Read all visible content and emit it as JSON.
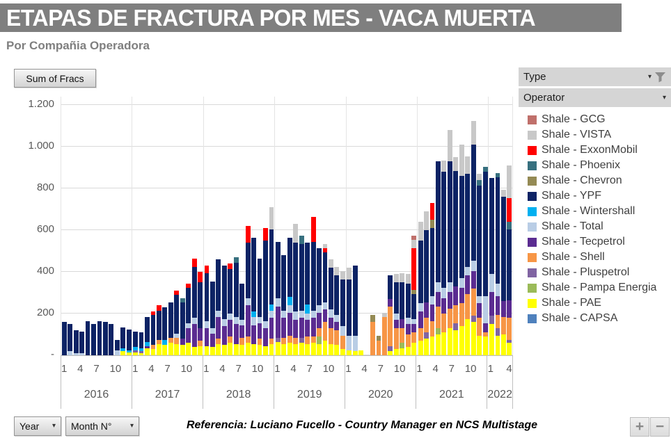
{
  "title": "ETAPAS DE FRACTURA POR MES -  VACA MUERTA",
  "subtitle": "Por Compañia Operadora",
  "toolbar": {
    "sum_of_fracs": "Sum of Fracs",
    "year_label": "Year",
    "month_label": "Month N°"
  },
  "filters": {
    "type_label": "Type",
    "operator_label": "Operator"
  },
  "footer": {
    "reference": "Referencia: Luciano Fucello - Country Manager en NCS Multistage",
    "zoom_in": "+",
    "zoom_out": "−"
  },
  "chart_data": {
    "type": "bar",
    "stacked": true,
    "title": "ETAPAS DE FRACTURA POR MES - VACA MUERTA",
    "xlabel": "Year / Month N°",
    "ylabel": "Sum of Fracs",
    "ylim": [
      0,
      1240
    ],
    "grid": true,
    "legend_position": "right",
    "yticks": [
      {
        "v": 0,
        "t": "-"
      },
      {
        "v": 200,
        "t": "200"
      },
      {
        "v": 400,
        "t": "400"
      },
      {
        "v": 600,
        "t": "600"
      },
      {
        "v": 800,
        "t": "800"
      },
      {
        "v": 1000,
        "t": "1.000"
      },
      {
        "v": 1200,
        "t": "1.200"
      }
    ],
    "month_tick_labels": [
      {
        "i": 0,
        "t": "1"
      },
      {
        "i": 3,
        "t": "4"
      },
      {
        "i": 6,
        "t": "7"
      },
      {
        "i": 9,
        "t": "10"
      }
    ],
    "legend": [
      {
        "key": "GCG",
        "label": "Shale - GCG",
        "color": "#C0706B"
      },
      {
        "key": "VISTA",
        "label": "Shale - VISTA",
        "color": "#C8C8C8"
      },
      {
        "key": "Exx",
        "label": "Shale - ExxonMobil",
        "color": "#FF0000"
      },
      {
        "key": "Phx",
        "label": "Shale - Phoenix",
        "color": "#37707F"
      },
      {
        "key": "Chev",
        "label": "Shale - Chevron",
        "color": "#948A54"
      },
      {
        "key": "YPF",
        "label": "Shale - YPF",
        "color": "#0D2365"
      },
      {
        "key": "Win",
        "label": "Shale - Wintershall",
        "color": "#00B0F0"
      },
      {
        "key": "Total",
        "label": "Shale - Total",
        "color": "#B9CDE5"
      },
      {
        "key": "Tec",
        "label": "Shale - Tecpetrol",
        "color": "#5B2C91"
      },
      {
        "key": "Shell",
        "label": "Shale - Shell",
        "color": "#F79646"
      },
      {
        "key": "Plus",
        "label": "Shale - Pluspetrol",
        "color": "#8064A2"
      },
      {
        "key": "Pampa",
        "label": "Shale - Pampa Energia",
        "color": "#9BBB59"
      },
      {
        "key": "PAE",
        "label": "Shale - PAE",
        "color": "#FFFF00"
      },
      {
        "key": "CAPSA",
        "label": "Shale - CAPSA",
        "color": "#4F81BD"
      }
    ],
    "months": [
      {
        "y": 2016,
        "m": 1,
        "s": {
          "YPF": 160
        }
      },
      {
        "y": 2016,
        "m": 2,
        "s": {
          "Total": 20,
          "YPF": 130
        }
      },
      {
        "y": 2016,
        "m": 3,
        "s": {
          "Total": 10,
          "YPF": 110
        }
      },
      {
        "y": 2016,
        "m": 4,
        "s": {
          "Total": 10,
          "YPF": 105
        }
      },
      {
        "y": 2016,
        "m": 5,
        "s": {
          "YPF": 165
        }
      },
      {
        "y": 2016,
        "m": 6,
        "s": {
          "YPF": 150
        }
      },
      {
        "y": 2016,
        "m": 7,
        "s": {
          "YPF": 165
        }
      },
      {
        "y": 2016,
        "m": 8,
        "s": {
          "YPF": 160
        }
      },
      {
        "y": 2016,
        "m": 9,
        "s": {
          "YPF": 150
        }
      },
      {
        "y": 2016,
        "m": 10,
        "s": {
          "Total": 25,
          "YPF": 50
        }
      },
      {
        "y": 2016,
        "m": 11,
        "s": {
          "PAE": 20,
          "Win": 15,
          "YPF": 100
        }
      },
      {
        "y": 2016,
        "m": 12,
        "s": {
          "PAE": 15,
          "Win": 10,
          "YPF": 100
        }
      },
      {
        "y": 2017,
        "m": 1,
        "s": {
          "PAE": 15,
          "Plus": 10,
          "Win": 15,
          "YPF": 75
        }
      },
      {
        "y": 2017,
        "m": 2,
        "s": {
          "PAE": 10,
          "Plus": 10,
          "Win": 15,
          "YPF": 75
        }
      },
      {
        "y": 2017,
        "m": 3,
        "s": {
          "PAE": 35,
          "Tec": 10,
          "Win": 20,
          "YPF": 120
        }
      },
      {
        "y": 2017,
        "m": 4,
        "s": {
          "PAE": 30,
          "Shell": 20,
          "YPF": 145,
          "Exx": 15
        }
      },
      {
        "y": 2017,
        "m": 5,
        "s": {
          "PAE": 55,
          "Shell": 20,
          "YPF": 140,
          "Exx": 25
        }
      },
      {
        "y": 2017,
        "m": 6,
        "s": {
          "PAE": 50,
          "Win": 25,
          "YPF": 155
        }
      },
      {
        "y": 2017,
        "m": 7,
        "s": {
          "PAE": 60,
          "Shell": 25,
          "YPF": 170
        }
      },
      {
        "y": 2017,
        "m": 8,
        "s": {
          "PAE": 55,
          "Shell": 30,
          "Total": 20,
          "YPF": 185,
          "Exx": 20
        }
      },
      {
        "y": 2017,
        "m": 9,
        "s": {
          "PAE": 50,
          "Tec": 30,
          "YPF": 175,
          "Phx": 20
        }
      },
      {
        "y": 2017,
        "m": 10,
        "s": {
          "PAE": 60,
          "Tec": 70,
          "Total": 25,
          "YPF": 170,
          "Exx": 20
        }
      },
      {
        "y": 2017,
        "m": 11,
        "s": {
          "PAE": 40,
          "Tec": 110,
          "Total": 30,
          "YPF": 245,
          "Exx": 40
        }
      },
      {
        "y": 2017,
        "m": 12,
        "s": {
          "PAE": 45,
          "Shell": 25,
          "Tec": 60,
          "YPF": 220,
          "Exx": 50
        }
      },
      {
        "y": 2018,
        "m": 1,
        "s": {
          "PAE": 45,
          "Tec": 85,
          "Total": 35,
          "YPF": 230,
          "Exx": 35
        }
      },
      {
        "y": 2018,
        "m": 2,
        "s": {
          "PAE": 40,
          "Tec": 65,
          "Total": 25,
          "YPF": 225
        }
      },
      {
        "y": 2018,
        "m": 3,
        "s": {
          "PAE": 55,
          "Shell": 25,
          "Tec": 105,
          "Total": 30,
          "YPF": 245
        }
      },
      {
        "y": 2018,
        "m": 4,
        "s": {
          "PAE": 50,
          "Tec": 90,
          "Total": 35,
          "YPF": 255
        }
      },
      {
        "y": 2018,
        "m": 5,
        "s": {
          "PAE": 60,
          "Shell": 30,
          "Tec": 80,
          "Total": 30,
          "YPF": 215,
          "Exx": 25
        }
      },
      {
        "y": 2018,
        "m": 6,
        "s": {
          "PAE": 55,
          "Tec": 95,
          "Total": 35,
          "YPF": 260,
          "Phx": 25
        }
      },
      {
        "y": 2018,
        "m": 7,
        "s": {
          "PAE": 50,
          "Shell": 35,
          "Tec": 60,
          "Total": 25,
          "YPF": 175
        }
      },
      {
        "y": 2018,
        "m": 8,
        "s": {
          "PAE": 60,
          "Shell": 30,
          "Tec": 150,
          "Total": 35,
          "YPF": 265,
          "Exx": 80
        }
      },
      {
        "y": 2018,
        "m": 9,
        "s": {
          "PAE": 55,
          "Tec": 90,
          "Total": 40,
          "Win": 25,
          "YPF": 355
        }
      },
      {
        "y": 2018,
        "m": 10,
        "s": {
          "PAE": 50,
          "Shell": 30,
          "Tec": 75,
          "Total": 30,
          "YPF": 280
        }
      },
      {
        "y": 2018,
        "m": 11,
        "s": {
          "PAE": 45,
          "Tec": 85,
          "Total": 35,
          "YPF": 385,
          "Exx": 60
        }
      },
      {
        "y": 2018,
        "m": 12,
        "s": {
          "PAE": 55,
          "Shell": 25,
          "Tec": 100,
          "Total": 35,
          "Win": 30,
          "YPF": 360,
          "VISTA": 105
        }
      },
      {
        "y": 2019,
        "m": 1,
        "s": {
          "PAE": 65,
          "Plus": 20,
          "Tec": 150,
          "Total": 40,
          "YPF": 270
        }
      },
      {
        "y": 2019,
        "m": 2,
        "s": {
          "PAE": 55,
          "Shell": 30,
          "Tec": 95,
          "Total": 35,
          "YPF": 265
        }
      },
      {
        "y": 2019,
        "m": 3,
        "s": {
          "PAE": 60,
          "Shell": 35,
          "Tec": 110,
          "Total": 35,
          "Win": 40,
          "YPF": 285
        }
      },
      {
        "y": 2019,
        "m": 4,
        "s": {
          "PAE": 55,
          "Shell": 30,
          "Tec": 85,
          "Total": 40,
          "YPF": 330,
          "VISTA": 90
        }
      },
      {
        "y": 2019,
        "m": 5,
        "s": {
          "PAE": 60,
          "Plus": 25,
          "Tec": 95,
          "Total": 35,
          "YPF": 320,
          "Phx": 40
        }
      },
      {
        "y": 2019,
        "m": 6,
        "s": {
          "PAE": 55,
          "Shell": 35,
          "Tec": 80,
          "Total": 30,
          "Win": 45,
          "YPF": 295
        }
      },
      {
        "y": 2019,
        "m": 7,
        "s": {
          "PAE": 60,
          "Shell": 30,
          "Tec": 90,
          "Total": 35,
          "YPF": 330,
          "Exx": 120
        }
      },
      {
        "y": 2019,
        "m": 8,
        "s": {
          "PAE": 55,
          "Pampa": 35,
          "Shell": 40,
          "Tec": 75,
          "Total": 35,
          "YPF": 275
        }
      },
      {
        "y": 2019,
        "m": 9,
        "s": {
          "PAE": 70,
          "Shell": 90,
          "Tec": 60,
          "Total": 35,
          "YPF": 240,
          "Exx": 20,
          "VISTA": 20
        }
      },
      {
        "y": 2019,
        "m": 10,
        "s": {
          "PAE": 55,
          "Shell": 75,
          "Tec": 50,
          "Total": 40,
          "YPF": 200,
          "VISTA": 40
        }
      },
      {
        "y": 2019,
        "m": 11,
        "s": {
          "PAE": 50,
          "Shell": 70,
          "Tec": 40,
          "Total": 35,
          "YPF": 190,
          "VISTA": 40
        }
      },
      {
        "y": 2019,
        "m": 12,
        "s": {
          "PAE": 30,
          "Shell": 65,
          "Total": 45,
          "YPF": 225,
          "VISTA": 40
        }
      },
      {
        "y": 2020,
        "m": 1,
        "s": {
          "PAE": 25,
          "Total": 70,
          "YPF": 270,
          "VISTA": 55
        }
      },
      {
        "y": 2020,
        "m": 2,
        "s": {
          "PAE": 20,
          "Total": 75,
          "YPF": 335
        }
      },
      {
        "y": 2020,
        "m": 3,
        "s": {
          "PAE": 25
        }
      },
      {
        "y": 2020,
        "m": 4,
        "s": {}
      },
      {
        "y": 2020,
        "m": 5,
        "s": {
          "Shell": 160,
          "Chev": 35
        }
      },
      {
        "y": 2020,
        "m": 6,
        "s": {
          "Shell": 70,
          "Chev": 25
        }
      },
      {
        "y": 2020,
        "m": 7,
        "s": {
          "Shell": 185,
          "VISTA": 20
        }
      },
      {
        "y": 2020,
        "m": 8,
        "s": {
          "PAE": 20,
          "Plus": 25,
          "Shell": 190,
          "Tec": 35,
          "YPF": 115
        }
      },
      {
        "y": 2020,
        "m": 9,
        "s": {
          "PAE": 30,
          "Shell": 100,
          "Tec": 40,
          "Total": 30,
          "YPF": 150,
          "VISTA": 40
        }
      },
      {
        "y": 2020,
        "m": 10,
        "s": {
          "PAE": 35,
          "Pampa": 25,
          "Shell": 70,
          "Tec": 45,
          "YPF": 175,
          "VISTA": 45
        }
      },
      {
        "y": 2020,
        "m": 11,
        "s": {
          "PAE": 40,
          "Shell": 60,
          "Tec": 50,
          "Total": 30,
          "YPF": 165,
          "VISTA": 45
        }
      },
      {
        "y": 2020,
        "m": 12,
        "s": {
          "PAE": 60,
          "Shell": 50,
          "Tec": 40,
          "Total": 25,
          "YPF": 120,
          "Chev": 20,
          "Exx": 200,
          "VISTA": 40,
          "GCG": 20
        }
      },
      {
        "y": 2021,
        "m": 1,
        "s": {
          "PAE": 70,
          "Shell": 60,
          "Tec": 80,
          "Total": 40,
          "YPF": 300,
          "VISTA": 90
        }
      },
      {
        "y": 2021,
        "m": 2,
        "s": {
          "PAE": 80,
          "Plus": 30,
          "Shell": 70,
          "Tec": 75,
          "YPF": 345,
          "VISTA": 90
        }
      },
      {
        "y": 2021,
        "m": 3,
        "s": {
          "PAE": 90,
          "Shell": 75,
          "Tec": 80,
          "Total": 40,
          "YPF": 325,
          "Chev": 40,
          "Exx": 80
        }
      },
      {
        "y": 2021,
        "m": 4,
        "s": {
          "PAE": 100,
          "Pampa": 30,
          "Shell": 105,
          "Tec": 70,
          "Total": 45,
          "YPF": 580
        }
      },
      {
        "y": 2021,
        "m": 5,
        "s": {
          "PAE": 110,
          "Shell": 90,
          "Tec": 75,
          "Total": 50,
          "YPF": 555,
          "VISTA": 55
        }
      },
      {
        "y": 2021,
        "m": 6,
        "s": {
          "PAE": 130,
          "Shell": 95,
          "Tec": 80,
          "Total": 45,
          "YPF": 580,
          "VISTA": 150
        }
      },
      {
        "y": 2021,
        "m": 7,
        "s": {
          "PAE": 120,
          "Plus": 35,
          "Shell": 85,
          "Tec": 90,
          "YPF": 555,
          "VISTA": 65
        }
      },
      {
        "y": 2021,
        "m": 8,
        "s": {
          "PAE": 140,
          "Shell": 110,
          "Tec": 75,
          "Total": 45,
          "YPF": 490,
          "VISTA": 150
        }
      },
      {
        "y": 2021,
        "m": 9,
        "s": {
          "PAE": 175,
          "Shell": 120,
          "Tec": 90,
          "Total": 40,
          "YPF": 445,
          "VISTA": 85
        }
      },
      {
        "y": 2021,
        "m": 10,
        "s": {
          "PAE": 160,
          "Plus": 30,
          "Shell": 130,
          "Tec": 85,
          "Total": 50,
          "YPF": 555,
          "VISTA": 115
        }
      },
      {
        "y": 2021,
        "m": 11,
        "s": {
          "PAE": 95,
          "Shell": 85,
          "Tec": 70,
          "Total": 35,
          "YPF": 530,
          "Phx": 25,
          "VISTA": 30
        }
      },
      {
        "y": 2021,
        "m": 12,
        "s": {
          "PAE": 90,
          "Shell": 20,
          "Tec": 45,
          "Total": 130,
          "YPF": 595,
          "Phx": 25
        }
      },
      {
        "y": 2022,
        "m": 1,
        "s": {
          "PAE": 150,
          "Plus": 40,
          "Tec": 115,
          "Total": 85,
          "YPF": 460
        }
      },
      {
        "y": 2022,
        "m": 2,
        "s": {
          "PAE": 95,
          "Plus": 35,
          "Shell": 65,
          "Tec": 90,
          "Total": 60,
          "YPF": 510,
          "Phx": 20
        }
      },
      {
        "y": 2022,
        "m": 3,
        "s": {
          "PAE": 100,
          "Shell": 85,
          "Tec": 75,
          "YPF": 500,
          "VISTA": 35
        }
      },
      {
        "y": 2022,
        "m": 4,
        "s": {
          "PAE": 60,
          "Plus": 15,
          "Shell": 105,
          "Tec": 85,
          "YPF": 340,
          "Phx": 35,
          "Exx": 115,
          "VISTA": 155
        }
      }
    ]
  }
}
